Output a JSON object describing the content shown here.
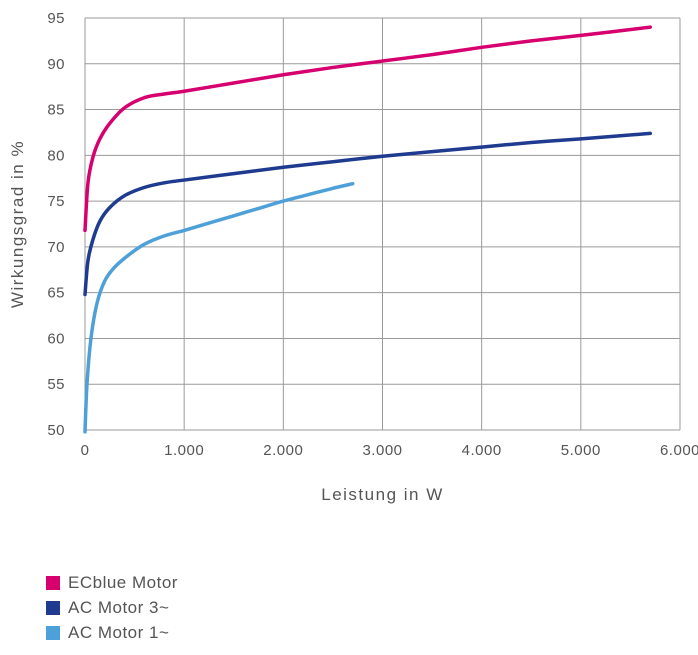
{
  "chart_data": {
    "type": "line",
    "xlabel": "Leistung in W",
    "ylabel": "Wirkungsgrad in %",
    "xlim": [
      0,
      6000
    ],
    "ylim": [
      50,
      95
    ],
    "x_ticks": [
      "0",
      "1.000",
      "2.000",
      "3.000",
      "4.000",
      "5.000",
      "6.000"
    ],
    "y_ticks": [
      "50",
      "55",
      "60",
      "65",
      "70",
      "75",
      "80",
      "85",
      "90",
      "95"
    ],
    "grid": true,
    "legend_position": "bottom-left",
    "series": [
      {
        "name": "ECblue Motor",
        "color": "#d6006f",
        "points": [
          [
            0,
            71.8
          ],
          [
            30,
            77
          ],
          [
            80,
            79.8
          ],
          [
            150,
            81.8
          ],
          [
            250,
            83.5
          ],
          [
            400,
            85.2
          ],
          [
            600,
            86.3
          ],
          [
            800,
            86.7
          ],
          [
            1000,
            87.0
          ],
          [
            1500,
            87.9
          ],
          [
            2000,
            88.8
          ],
          [
            2500,
            89.6
          ],
          [
            3000,
            90.3
          ],
          [
            3500,
            91.0
          ],
          [
            4000,
            91.8
          ],
          [
            4500,
            92.5
          ],
          [
            5000,
            93.1
          ],
          [
            5700,
            94.0
          ]
        ]
      },
      {
        "name": "AC Motor 3~",
        "color": "#1f3b8f",
        "points": [
          [
            0,
            64.8
          ],
          [
            30,
            68.5
          ],
          [
            80,
            70.8
          ],
          [
            150,
            72.8
          ],
          [
            250,
            74.3
          ],
          [
            400,
            75.6
          ],
          [
            600,
            76.5
          ],
          [
            800,
            77.0
          ],
          [
            1000,
            77.3
          ],
          [
            1500,
            78.0
          ],
          [
            2000,
            78.7
          ],
          [
            2500,
            79.3
          ],
          [
            3000,
            79.9
          ],
          [
            3500,
            80.4
          ],
          [
            4000,
            80.9
          ],
          [
            4500,
            81.4
          ],
          [
            5000,
            81.8
          ],
          [
            5700,
            82.4
          ]
        ]
      },
      {
        "name": "AC Motor 1~",
        "color": "#4ea0d8",
        "points": [
          [
            0,
            49.8
          ],
          [
            20,
            55
          ],
          [
            60,
            60
          ],
          [
            120,
            63.8
          ],
          [
            200,
            66.3
          ],
          [
            300,
            67.8
          ],
          [
            450,
            69.2
          ],
          [
            600,
            70.3
          ],
          [
            800,
            71.2
          ],
          [
            1000,
            71.8
          ],
          [
            1250,
            72.6
          ],
          [
            1500,
            73.4
          ],
          [
            1750,
            74.2
          ],
          [
            2000,
            75.0
          ],
          [
            2250,
            75.7
          ],
          [
            2500,
            76.4
          ],
          [
            2700,
            76.9
          ]
        ]
      }
    ]
  }
}
